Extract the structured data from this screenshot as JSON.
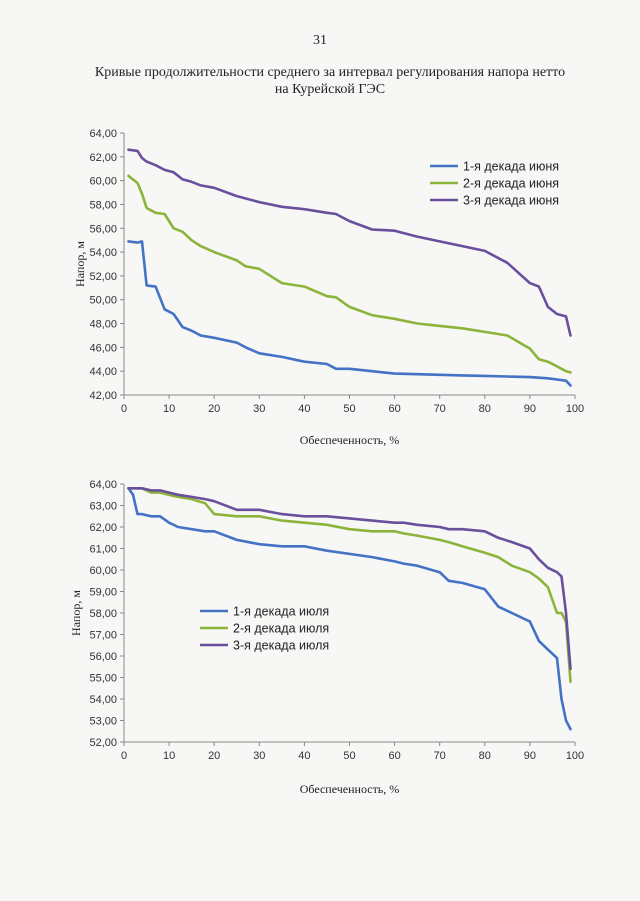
{
  "page_number": "31",
  "title_line1": "Кривые продолжительности среднего за интервал регулирования напора нетто",
  "title_line2": "на Курейской ГЭС",
  "colors": {
    "series1": "#4472C4",
    "series2": "#8DB43A",
    "series3": "#6A4F9C",
    "axis": "#888888"
  },
  "chart_data": [
    {
      "type": "line",
      "xlabel": "Обеспеченность, %",
      "ylabel": "Напор, м",
      "xlim": [
        0,
        100
      ],
      "ylim": [
        42,
        64
      ],
      "x_ticks": [
        "0",
        "10",
        "20",
        "30",
        "40",
        "50",
        "60",
        "70",
        "80",
        "90",
        "100"
      ],
      "y_ticks": [
        "42,00",
        "44,00",
        "46,00",
        "48,00",
        "50,00",
        "52,00",
        "54,00",
        "56,00",
        "58,00",
        "60,00",
        "62,00",
        "64,00"
      ],
      "legend_position": "top-right",
      "x": [
        1,
        3,
        4,
        5,
        7,
        9,
        11,
        13,
        15,
        17,
        20,
        25,
        27,
        30,
        35,
        40,
        45,
        47,
        50,
        55,
        60,
        65,
        70,
        75,
        80,
        85,
        90,
        92,
        94,
        96,
        98,
        99
      ],
      "series": [
        {
          "name": "1-я декада июня",
          "values": [
            54.9,
            54.8,
            54.9,
            51.2,
            51.1,
            49.2,
            48.8,
            47.7,
            47.4,
            47.0,
            46.8,
            46.4,
            46.0,
            45.5,
            45.2,
            44.8,
            44.6,
            44.2,
            44.2,
            44.0,
            43.8,
            43.75,
            43.7,
            43.65,
            43.6,
            43.55,
            43.5,
            43.45,
            43.4,
            43.3,
            43.2,
            42.8
          ]
        },
        {
          "name": "2-я декада июня",
          "values": [
            60.4,
            59.8,
            58.9,
            57.7,
            57.3,
            57.2,
            56.0,
            55.7,
            55.0,
            54.5,
            54.0,
            53.3,
            52.8,
            52.6,
            51.4,
            51.1,
            50.3,
            50.2,
            49.4,
            48.7,
            48.4,
            48.0,
            47.8,
            47.6,
            47.3,
            47.0,
            45.9,
            45.0,
            44.8,
            44.4,
            44.0,
            43.9
          ]
        },
        {
          "name": "3-я декада июня",
          "values": [
            62.6,
            62.5,
            61.9,
            61.6,
            61.3,
            60.9,
            60.7,
            60.1,
            59.9,
            59.6,
            59.4,
            58.7,
            58.5,
            58.2,
            57.8,
            57.6,
            57.3,
            57.2,
            56.6,
            55.9,
            55.8,
            55.3,
            54.9,
            54.5,
            54.1,
            53.1,
            51.4,
            51.1,
            49.4,
            48.8,
            48.6,
            47.0
          ]
        }
      ]
    },
    {
      "type": "line",
      "xlabel": "Обеспеченность, %",
      "ylabel": "Напор, м",
      "xlim": [
        0,
        100
      ],
      "ylim": [
        52,
        64
      ],
      "x_ticks": [
        "0",
        "10",
        "20",
        "30",
        "40",
        "50",
        "60",
        "70",
        "80",
        "90",
        "100"
      ],
      "y_ticks": [
        "52,00",
        "53,00",
        "54,00",
        "55,00",
        "56,00",
        "57,00",
        "58,00",
        "59,00",
        "60,00",
        "61,00",
        "62,00",
        "63,00",
        "64,00"
      ],
      "legend_position": "center-left",
      "x": [
        1,
        2,
        3,
        4,
        6,
        8,
        10,
        12,
        15,
        18,
        20,
        25,
        30,
        35,
        40,
        45,
        50,
        55,
        60,
        62,
        65,
        70,
        72,
        75,
        80,
        83,
        86,
        90,
        92,
        94,
        96,
        97,
        98,
        99
      ],
      "series": [
        {
          "name": "1-я декада июля",
          "values": [
            63.8,
            63.5,
            62.6,
            62.6,
            62.5,
            62.5,
            62.2,
            62.0,
            61.9,
            61.8,
            61.8,
            61.4,
            61.2,
            61.1,
            61.1,
            60.9,
            60.75,
            60.6,
            60.4,
            60.3,
            60.2,
            59.9,
            59.5,
            59.4,
            59.1,
            58.3,
            58.0,
            57.6,
            56.7,
            56.3,
            55.9,
            54.0,
            53.0,
            52.6
          ]
        },
        {
          "name": "2-я декада июля",
          "values": [
            63.8,
            63.8,
            63.8,
            63.8,
            63.6,
            63.6,
            63.5,
            63.4,
            63.3,
            63.1,
            62.6,
            62.5,
            62.5,
            62.3,
            62.2,
            62.1,
            61.9,
            61.8,
            61.8,
            61.7,
            61.6,
            61.4,
            61.3,
            61.1,
            60.8,
            60.6,
            60.2,
            59.9,
            59.6,
            59.2,
            58.0,
            58.0,
            57.6,
            54.8
          ]
        },
        {
          "name": "3-я декада июля",
          "values": [
            63.8,
            63.8,
            63.8,
            63.8,
            63.7,
            63.7,
            63.6,
            63.5,
            63.4,
            63.3,
            63.2,
            62.8,
            62.8,
            62.6,
            62.5,
            62.5,
            62.4,
            62.3,
            62.2,
            62.2,
            62.1,
            62.0,
            61.9,
            61.9,
            61.8,
            61.5,
            61.3,
            61.0,
            60.5,
            60.1,
            59.9,
            59.7,
            58.0,
            55.4
          ]
        }
      ]
    }
  ]
}
